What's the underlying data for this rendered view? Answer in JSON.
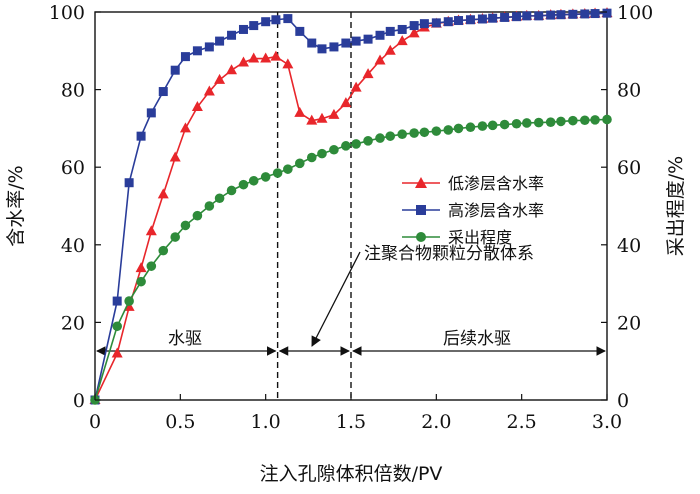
{
  "chart_data": {
    "type": "line",
    "title": "",
    "xlabel": "注入孔隙体积倍数/PV",
    "ylabel_left": "含水率/%",
    "ylabel_right": "采出程度/%",
    "xlim": [
      0,
      3.0
    ],
    "ylim_left": [
      0,
      100
    ],
    "ylim_right": [
      0,
      100
    ],
    "x_ticks": [
      0,
      0.5,
      1.0,
      1.5,
      2.0,
      2.5,
      3.0
    ],
    "x_tick_labels": [
      "0",
      "0.5",
      "1.0",
      "1.5",
      "2.0",
      "2.5",
      "3.0"
    ],
    "y_ticks": [
      0,
      20,
      40,
      60,
      80,
      100
    ],
    "y_tick_labels": [
      "0",
      "20",
      "40",
      "60",
      "80",
      "100"
    ],
    "grid": false,
    "legend_position": "center-right",
    "series": [
      {
        "name": "低渗层含水率",
        "color": "#e8262b",
        "marker": "triangle",
        "x": [
          0,
          0.13,
          0.2,
          0.27,
          0.33,
          0.4,
          0.47,
          0.53,
          0.6,
          0.67,
          0.73,
          0.8,
          0.87,
          0.93,
          1.0,
          1.06,
          1.13,
          1.2,
          1.27,
          1.33,
          1.4,
          1.47,
          1.53,
          1.6,
          1.67,
          1.73,
          1.8,
          1.87,
          1.93,
          2.0,
          2.07,
          2.13,
          2.2,
          2.27,
          2.33,
          2.4,
          2.47,
          2.53,
          2.6,
          2.67,
          2.73,
          2.8,
          2.87,
          2.93,
          3.0
        ],
        "y": [
          0,
          12,
          24,
          34,
          43.5,
          53,
          62.5,
          70,
          75.5,
          79.5,
          82.5,
          85,
          87,
          88,
          88,
          88.5,
          86.5,
          74,
          72,
          72.5,
          73.5,
          76.5,
          80.5,
          84,
          87.5,
          90,
          92.5,
          94.5,
          96,
          97,
          97.5,
          97.8,
          98,
          98.2,
          98.4,
          98.6,
          98.8,
          99,
          99,
          99.2,
          99.3,
          99.4,
          99.5,
          99.6,
          99.7
        ]
      },
      {
        "name": "高渗层含水率",
        "color": "#2a3d9a",
        "marker": "square",
        "x": [
          0,
          0.13,
          0.2,
          0.27,
          0.33,
          0.4,
          0.47,
          0.53,
          0.6,
          0.67,
          0.73,
          0.8,
          0.87,
          0.93,
          1.0,
          1.06,
          1.13,
          1.2,
          1.27,
          1.33,
          1.4,
          1.47,
          1.53,
          1.6,
          1.67,
          1.73,
          1.8,
          1.87,
          1.93,
          2.0,
          2.07,
          2.13,
          2.2,
          2.27,
          2.33,
          2.4,
          2.47,
          2.53,
          2.6,
          2.67,
          2.73,
          2.8,
          2.87,
          2.93,
          3.0
        ],
        "y": [
          0,
          25.5,
          56,
          68,
          74,
          79.5,
          85,
          88.5,
          90,
          91,
          92.5,
          94,
          95.5,
          96.5,
          97.5,
          98,
          98.3,
          95,
          92,
          90.5,
          91,
          92,
          92.5,
          93,
          94,
          95,
          95.5,
          96.5,
          97,
          97.2,
          97.5,
          97.8,
          98,
          98.2,
          98.4,
          98.6,
          98.8,
          99,
          99,
          99.2,
          99.3,
          99.4,
          99.5,
          99.6,
          99.7
        ]
      },
      {
        "name": "采出程度",
        "color": "#2e8b3a",
        "marker": "circle",
        "axis": "right",
        "x": [
          0,
          0.13,
          0.2,
          0.27,
          0.33,
          0.4,
          0.47,
          0.53,
          0.6,
          0.67,
          0.73,
          0.8,
          0.87,
          0.93,
          1.0,
          1.07,
          1.13,
          1.2,
          1.27,
          1.33,
          1.4,
          1.47,
          1.53,
          1.6,
          1.67,
          1.73,
          1.8,
          1.87,
          1.93,
          2.0,
          2.07,
          2.13,
          2.2,
          2.27,
          2.33,
          2.4,
          2.47,
          2.53,
          2.6,
          2.67,
          2.73,
          2.8,
          2.87,
          2.93,
          3.0
        ],
        "y": [
          0,
          19,
          25.5,
          30.5,
          34.5,
          38.5,
          42,
          45,
          47.5,
          50,
          52,
          54,
          55.5,
          56.5,
          57.5,
          58.5,
          59.5,
          61,
          62.5,
          63.5,
          64.5,
          65.5,
          66,
          66.8,
          67.5,
          68,
          68.5,
          68.8,
          69,
          69.3,
          69.6,
          70,
          70.3,
          70.6,
          70.8,
          71,
          71.2,
          71.4,
          71.5,
          71.6,
          71.8,
          72,
          72.1,
          72.2,
          72.3
        ]
      }
    ],
    "vlines": [
      1.07,
      1.5
    ],
    "annotations": {
      "stage1": "水驱",
      "stage2": "注聚合物颗粒分散体系",
      "stage3": "后续水驱"
    }
  }
}
